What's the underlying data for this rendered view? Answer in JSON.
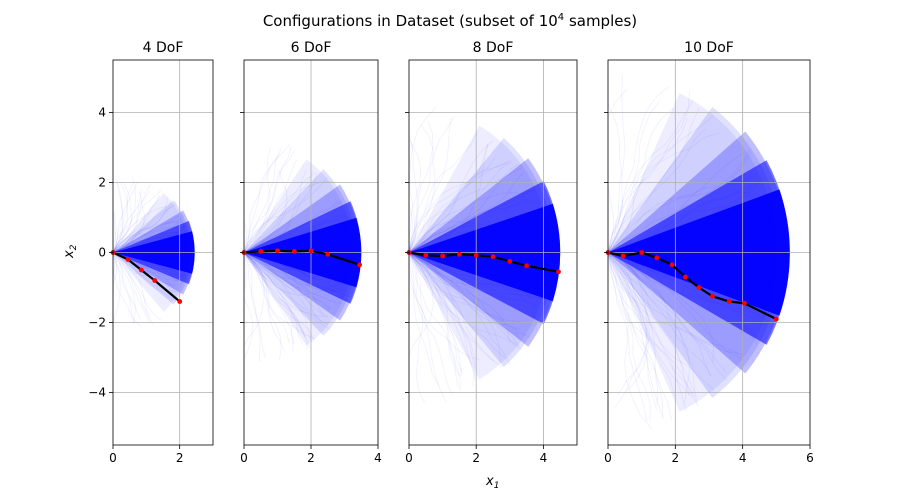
{
  "figure": {
    "title_prefix": "Configurations in Dataset (subset of 10",
    "title_sup": "4",
    "title_suffix": " samples)",
    "xlabel_main": "x",
    "xlabel_sub": "1",
    "ylabel_main": "x",
    "ylabel_sub": "2"
  },
  "colors": {
    "cloud": "#0000ff",
    "chain": "#000000",
    "joint": "#ff0000",
    "grid": "#b0b0b0"
  },
  "chart_data": [
    {
      "type": "scatter",
      "title": "4 DoF",
      "xlim": [
        0,
        3
      ],
      "ylim": [
        -5.5,
        5.5
      ],
      "xticks": [
        0,
        2
      ],
      "yticks": [
        -4,
        -2,
        0,
        2,
        4
      ],
      "reach_radius": 2.45,
      "cloud_max_half_angle_deg": 48,
      "grid": true,
      "example_chain": {
        "x": [
          0,
          0.45,
          0.85,
          1.25,
          2.0
        ],
        "y": [
          0,
          -0.2,
          -0.5,
          -0.8,
          -1.4
        ]
      }
    },
    {
      "type": "scatter",
      "title": "6 DoF",
      "xlim": [
        0,
        4
      ],
      "ylim": [
        -5.5,
        5.5
      ],
      "xticks": [
        0,
        2,
        4
      ],
      "yticks": [
        -4,
        -2,
        0,
        2,
        4
      ],
      "reach_radius": 3.5,
      "cloud_max_half_angle_deg": 55,
      "grid": true,
      "example_chain": {
        "x": [
          0,
          0.5,
          1.0,
          1.5,
          2.0,
          2.5,
          3.45
        ],
        "y": [
          0,
          0.03,
          0.05,
          0.03,
          0.05,
          -0.05,
          -0.35
        ]
      }
    },
    {
      "type": "scatter",
      "title": "8 DoF",
      "xlim": [
        0,
        5
      ],
      "ylim": [
        -5.5,
        5.5
      ],
      "xticks": [
        0,
        2,
        4
      ],
      "yticks": [
        -4,
        -2,
        0,
        2,
        4
      ],
      "reach_radius": 4.5,
      "cloud_max_half_angle_deg": 60,
      "grid": true,
      "example_chain": {
        "x": [
          0,
          0.5,
          1.0,
          1.5,
          2.0,
          2.5,
          3.0,
          3.5,
          4.45
        ],
        "y": [
          0,
          -0.08,
          -0.1,
          -0.05,
          -0.08,
          -0.12,
          -0.25,
          -0.38,
          -0.55
        ]
      }
    },
    {
      "type": "scatter",
      "title": "10 DoF",
      "xlim": [
        0,
        6
      ],
      "ylim": [
        -5.5,
        5.5
      ],
      "xticks": [
        0,
        2,
        4,
        6
      ],
      "yticks": [
        -4,
        -2,
        0,
        2,
        4
      ],
      "reach_radius": 5.4,
      "cloud_max_half_angle_deg": 65,
      "grid": true,
      "example_chain": {
        "x": [
          0,
          0.45,
          1.0,
          1.45,
          1.9,
          2.3,
          2.7,
          3.1,
          3.6,
          4.05,
          5.0
        ],
        "y": [
          0,
          -0.1,
          0.0,
          -0.15,
          -0.35,
          -0.7,
          -1.0,
          -1.25,
          -1.4,
          -1.45,
          -1.9
        ]
      }
    }
  ]
}
